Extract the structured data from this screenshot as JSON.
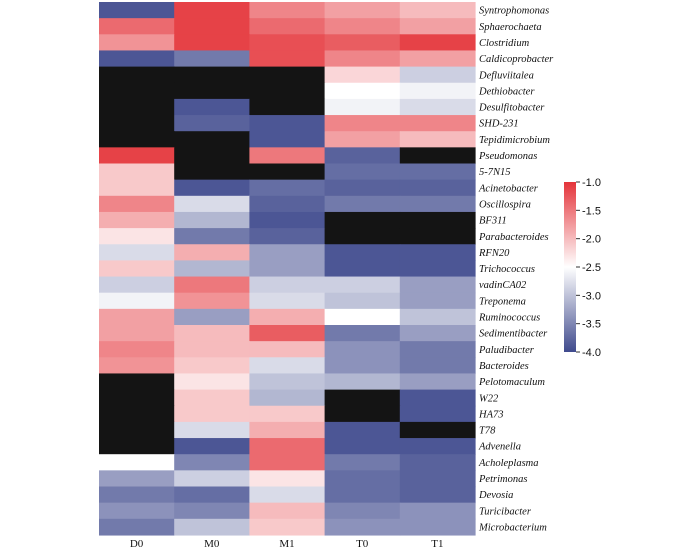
{
  "chart_data": {
    "type": "heatmap",
    "title": "",
    "xlabel": "",
    "ylabel": "",
    "columns": [
      "D0",
      "M0",
      "M1",
      "T0",
      "T1"
    ],
    "rows": [
      "Syntrophomonas",
      "Sphaerochaeta",
      "Clostridium",
      "Caldicoprobacter",
      "Defluviitalea",
      "Dethiobacter",
      "Desulfitobacter",
      "SHD-231",
      "Tepidimicrobium",
      "Pseudomonas",
      "5-7N15",
      "Acinetobacter",
      "Oscillospira",
      "BF311",
      "Parabacteroides",
      "RFN20",
      "Trichococcus",
      "vadinCA02",
      "Treponema",
      "Ruminococcus",
      "Sedimentibacter",
      "Paludibacter",
      "Bacteroides",
      "Pelotomaculum",
      "W22",
      "HA73",
      "T78",
      "Advenella",
      "Acholeplasma",
      "Petrimonas",
      "Devosia",
      "Turicibacter",
      "Microbacterium"
    ],
    "values": [
      [
        -3.9,
        -1.1,
        -1.6,
        -1.8,
        -2.0
      ],
      [
        -1.4,
        -1.1,
        -1.4,
        -1.6,
        -1.8
      ],
      [
        -1.7,
        -1.1,
        -1.2,
        -1.3,
        -1.1
      ],
      [
        -3.9,
        -3.6,
        -1.2,
        -1.6,
        -1.8
      ],
      [
        null,
        null,
        null,
        -2.2,
        -2.9
      ],
      [
        null,
        null,
        null,
        -2.5,
        -2.6
      ],
      [
        null,
        -3.9,
        null,
        -2.6,
        -2.8
      ],
      [
        null,
        -3.8,
        -3.9,
        -1.6,
        -1.6
      ],
      [
        null,
        null,
        -3.9,
        -1.8,
        -2.0
      ],
      [
        -1.1,
        null,
        -1.5,
        -3.8,
        null
      ],
      [
        -2.1,
        null,
        null,
        -3.7,
        -3.7
      ],
      [
        -2.1,
        -3.9,
        -3.7,
        -3.8,
        -3.8
      ],
      [
        -1.6,
        -2.8,
        -3.8,
        -3.6,
        -3.6
      ],
      [
        -1.9,
        -3.1,
        -3.9,
        null,
        null
      ],
      [
        -2.3,
        -3.6,
        -3.8,
        null,
        null
      ],
      [
        -2.8,
        -1.9,
        -3.3,
        -3.9,
        -3.9
      ],
      [
        -2.1,
        -3.1,
        -3.3,
        -3.9,
        -3.9
      ],
      [
        -2.9,
        -1.5,
        -2.9,
        -2.9,
        -3.3
      ],
      [
        -2.6,
        -1.7,
        -2.8,
        -3.0,
        -3.3
      ],
      [
        -1.8,
        -3.3,
        -1.9,
        -2.5,
        -3.0
      ],
      [
        -1.8,
        -2.0,
        -1.3,
        -3.6,
        -3.3
      ],
      [
        -1.6,
        -2.0,
        -2.0,
        -3.4,
        -3.6
      ],
      [
        -1.7,
        -2.1,
        -2.8,
        -3.4,
        -3.6
      ],
      [
        null,
        -2.3,
        -3.0,
        -3.1,
        -3.3
      ],
      [
        null,
        -2.1,
        -3.1,
        null,
        -3.9
      ],
      [
        null,
        -2.1,
        -2.1,
        null,
        -3.9
      ],
      [
        null,
        -2.8,
        -1.9,
        -3.9,
        null
      ],
      [
        null,
        -3.9,
        -1.4,
        -3.9,
        -3.9
      ],
      [
        -2.5,
        -3.5,
        -1.4,
        -3.6,
        -3.8
      ],
      [
        -3.3,
        -2.9,
        -2.3,
        -3.7,
        -3.8
      ],
      [
        -3.6,
        -3.7,
        -2.8,
        -3.7,
        -3.8
      ],
      [
        -3.4,
        -3.5,
        -2.0,
        -3.5,
        -3.4
      ],
      [
        -3.6,
        -3.0,
        -2.1,
        -3.4,
        -3.4
      ]
    ],
    "missing_color": "#141414",
    "colorscale": {
      "min": -4.0,
      "mid": -2.5,
      "max": -1.0,
      "low_color": "#3f4a8d",
      "mid_color": "#ffffff",
      "high_color": "#e4343a"
    },
    "colorbar_ticks": [
      "-1.0",
      "-1.5",
      "-2.0",
      "-2.5",
      "-3.0",
      "-3.5",
      "-4.0"
    ],
    "colorbar_tick_values": [
      -1.0,
      -1.5,
      -2.0,
      -2.5,
      -3.0,
      -3.5,
      -4.0
    ],
    "legend_position": "right"
  }
}
